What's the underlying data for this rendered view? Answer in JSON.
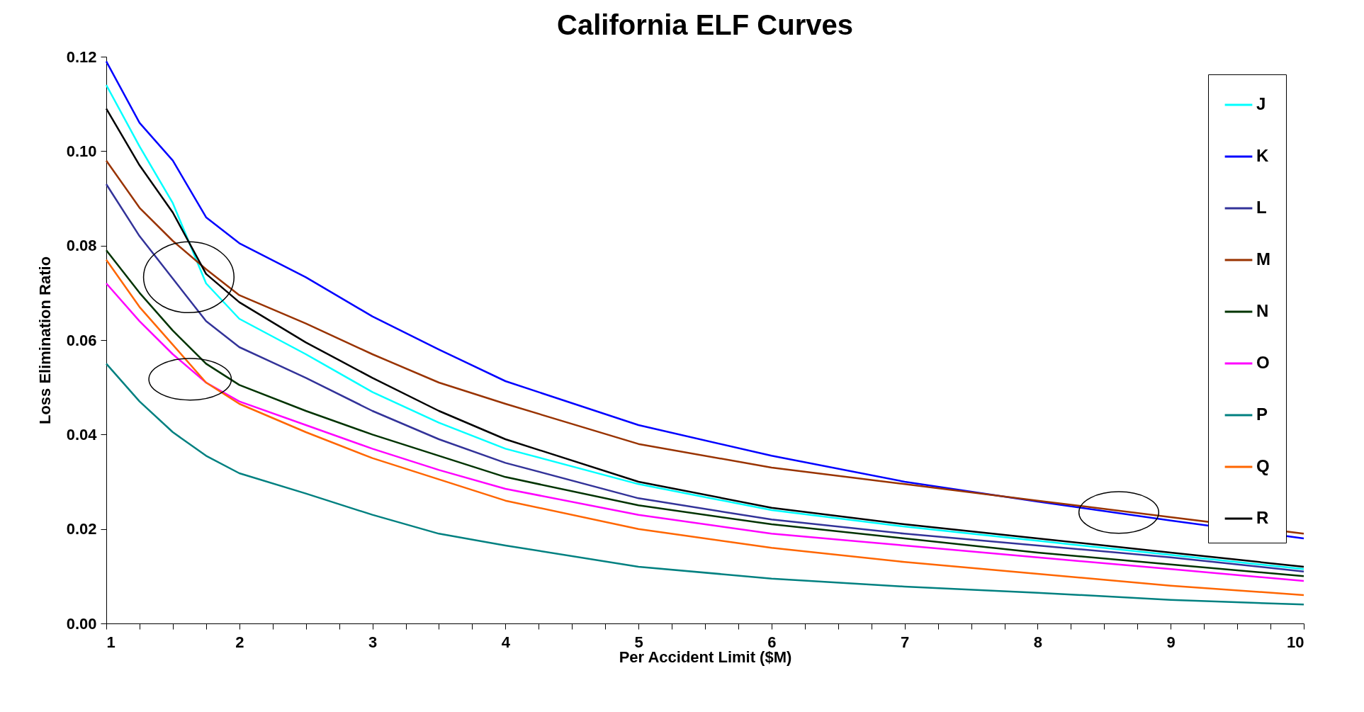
{
  "chart_data": {
    "type": "line",
    "title": "California ELF Curves",
    "xlabel": "Per Accident Limit ($M)",
    "ylabel": "Loss Elimination Ratio",
    "xlim": [
      1,
      10
    ],
    "xticks": [
      1,
      {
        "value": 1.25,
        "label": null
      },
      {
        "value": 1.5,
        "label": null
      },
      {
        "value": 1.75,
        "label": null
      },
      2,
      {
        "value": 2.25,
        "label": null
      },
      {
        "value": 2.5,
        "label": null
      },
      {
        "value": 2.75,
        "label": null
      },
      3,
      {
        "value": 3.25,
        "label": null
      },
      {
        "value": 3.5,
        "label": null
      },
      {
        "value": 3.75,
        "label": null
      },
      4,
      {
        "value": 4.25,
        "label": null
      },
      {
        "value": 4.5,
        "label": null
      },
      {
        "value": 4.75,
        "label": null
      },
      5,
      {
        "value": 5.25,
        "label": null
      },
      {
        "value": 5.5,
        "label": null
      },
      {
        "value": 5.75,
        "label": null
      },
      6,
      {
        "value": 6.25,
        "label": null
      },
      {
        "value": 6.5,
        "label": null
      },
      {
        "value": 6.75,
        "label": null
      },
      7,
      {
        "value": 7.25,
        "label": null
      },
      {
        "value": 7.5,
        "label": null
      },
      {
        "value": 7.75,
        "label": null
      },
      8,
      {
        "value": 8.25,
        "label": null
      },
      {
        "value": 8.5,
        "label": null
      },
      {
        "value": 8.75,
        "label": null
      },
      9,
      {
        "value": 9.25,
        "label": null
      },
      {
        "value": 9.5,
        "label": null
      },
      {
        "value": 9.75,
        "label": null
      },
      10
    ],
    "ylim": [
      0,
      0.12
    ],
    "yticks": [
      {
        "value": 0,
        "label": "0.00"
      },
      {
        "value": 0.02,
        "label": "0.02"
      },
      {
        "value": 0.04,
        "label": "0.04"
      },
      {
        "value": 0.06,
        "label": "0.06"
      },
      {
        "value": 0.08,
        "label": "0.08"
      },
      {
        "value": 0.1,
        "label": "0.10"
      },
      {
        "value": 0.12,
        "label": "0.12"
      }
    ],
    "grid": false,
    "legend": "top right",
    "marker": "none",
    "line_style": "solid",
    "x": [
      1,
      1.25,
      1.5,
      1.75,
      2,
      2.5,
      3,
      3.5,
      4,
      5,
      6,
      7,
      8,
      9,
      10
    ],
    "series": [
      {
        "name": "J",
        "color": "#00ffff",
        "values": [
          0.114,
          0.101,
          0.089,
          0.072,
          0.0645,
          0.057,
          0.049,
          0.0425,
          0.037,
          0.0295,
          0.024,
          0.0205,
          0.0175,
          0.0145,
          0.0115
        ]
      },
      {
        "name": "K",
        "color": "#0000ff",
        "values": [
          0.119,
          0.106,
          0.098,
          0.086,
          0.0805,
          0.0733,
          0.065,
          0.058,
          0.0513,
          0.042,
          0.0355,
          0.03,
          0.0258,
          0.0218,
          0.018
        ]
      },
      {
        "name": "L",
        "color": "#333399",
        "values": [
          0.093,
          0.082,
          0.073,
          0.064,
          0.0585,
          0.052,
          0.045,
          0.039,
          0.034,
          0.0265,
          0.022,
          0.019,
          0.0165,
          0.014,
          0.011
        ]
      },
      {
        "name": "M",
        "color": "#993300",
        "values": [
          0.098,
          0.088,
          0.081,
          0.075,
          0.0695,
          0.0635,
          0.057,
          0.051,
          0.0465,
          0.038,
          0.033,
          0.0295,
          0.026,
          0.0225,
          0.019
        ]
      },
      {
        "name": "N",
        "color": "#003300",
        "values": [
          0.079,
          0.07,
          0.062,
          0.055,
          0.0505,
          0.045,
          0.04,
          0.0355,
          0.031,
          0.025,
          0.021,
          0.018,
          0.015,
          0.0125,
          0.01
        ]
      },
      {
        "name": "O",
        "color": "#ff00ff",
        "values": [
          0.072,
          0.064,
          0.057,
          0.051,
          0.047,
          0.042,
          0.037,
          0.0325,
          0.0285,
          0.023,
          0.019,
          0.0165,
          0.014,
          0.0115,
          0.009
        ]
      },
      {
        "name": "P",
        "color": "#008080",
        "values": [
          0.055,
          0.047,
          0.0405,
          0.0355,
          0.0318,
          0.0275,
          0.023,
          0.019,
          0.0165,
          0.012,
          0.0095,
          0.0078,
          0.0065,
          0.005,
          0.004
        ]
      },
      {
        "name": "Q",
        "color": "#ff6600",
        "values": [
          0.077,
          0.067,
          0.059,
          0.051,
          0.0465,
          0.0405,
          0.035,
          0.0305,
          0.026,
          0.02,
          0.016,
          0.013,
          0.0105,
          0.008,
          0.006
        ]
      },
      {
        "name": "R",
        "color": "#000000",
        "values": [
          0.109,
          0.097,
          0.087,
          0.074,
          0.068,
          0.0595,
          0.052,
          0.045,
          0.039,
          0.03,
          0.0245,
          0.021,
          0.018,
          0.015,
          0.012
        ]
      }
    ]
  }
}
